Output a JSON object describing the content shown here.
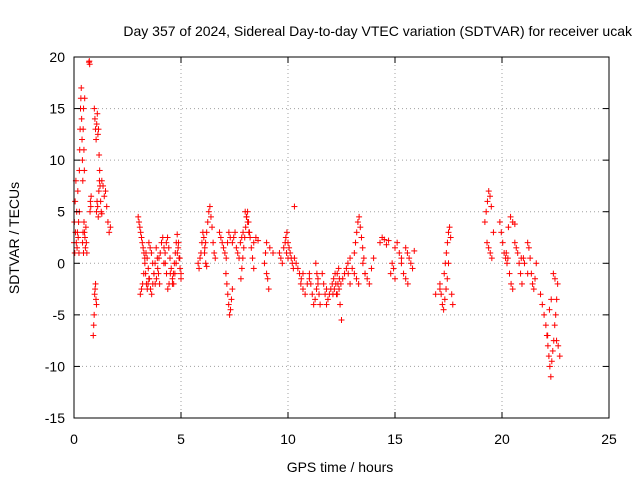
{
  "chart_data": {
    "type": "scatter",
    "title": "Day 357 of 2024, Sidereal Day-to-day VTEC variation (SDTVAR) for receiver ucak",
    "xlabel": "GPS time / hours",
    "ylabel": "SDTVAR / TECUs",
    "xlim": [
      0,
      25
    ],
    "ylim": [
      -15,
      20
    ],
    "xticks": [
      0,
      5,
      10,
      15,
      20,
      25
    ],
    "yticks": [
      -15,
      -10,
      -5,
      0,
      5,
      10,
      15,
      20
    ],
    "grid": true,
    "marker": "+",
    "color": "#ff0000",
    "series": [
      {
        "name": "SDTVAR",
        "segments": [
          {
            "t0": 0.0,
            "t1": 0.25,
            "y": [
              2,
              4,
              1,
              6,
              3,
              8,
              2,
              5,
              1.5,
              3,
              7,
              2.5,
              4,
              1,
              5
            ]
          },
          {
            "t0": 0.25,
            "t1": 0.5,
            "y": [
              9,
              11,
              13,
              15,
              16,
              17,
              14,
              12,
              10,
              8,
              13,
              15,
              11,
              9,
              16
            ]
          },
          {
            "t0": 0.4,
            "t1": 0.6,
            "y": [
              2,
              3,
              1,
              4,
              3,
              2.5,
              1.5,
              3.5,
              2,
              1
            ]
          },
          {
            "t0": 0.7,
            "t1": 0.8,
            "y": [
              19.5,
              19.6,
              19.3,
              5,
              6,
              5.5,
              6.5
            ]
          },
          {
            "t0": 0.9,
            "t1": 1.05,
            "y": [
              -7,
              -6,
              -5,
              -3,
              -2.5,
              -2,
              -3.5,
              -4
            ]
          },
          {
            "t0": 0.95,
            "t1": 1.2,
            "y": [
              15,
              14,
              13,
              12,
              13.5,
              14.5,
              12.5,
              13,
              10.5,
              9
            ]
          },
          {
            "t0": 1.05,
            "t1": 1.3,
            "y": [
              5,
              6,
              5.5,
              4.5,
              7,
              8,
              7.5,
              6,
              5,
              4.8
            ]
          },
          {
            "t0": 1.3,
            "t1": 1.7,
            "y": [
              8,
              7.5,
              6.5,
              7,
              5.5,
              4,
              3,
              3.5
            ]
          },
          {
            "t0": 3.0,
            "t1": 3.5,
            "y": [
              4.5,
              4,
              3.5,
              3,
              2.5,
              2,
              1.5,
              1,
              0.5,
              -1,
              -2,
              -2.5,
              -2,
              -1.5
            ]
          },
          {
            "t0": 3.1,
            "t1": 4.0,
            "y": [
              -3,
              -2.5,
              -2,
              -1,
              0,
              1,
              0.5,
              -0.5,
              -1.5,
              -2.5,
              -3,
              -2,
              -1,
              0,
              1.5,
              0.5,
              -1,
              -2
            ]
          },
          {
            "t0": 3.5,
            "t1": 4.5,
            "y": [
              2,
              1.5,
              1,
              0,
              -1,
              -2,
              -1.5,
              -0.5,
              0.5,
              1,
              2,
              2.5,
              1.5,
              0,
              -1,
              -2.5,
              -2,
              -1
            ]
          },
          {
            "t0": 4.2,
            "t1": 5.0,
            "y": [
              0,
              1,
              2,
              2.5,
              1.5,
              0.5,
              -0.5,
              -1.5,
              -2,
              -1,
              0,
              1,
              2,
              0.5,
              -1
            ]
          },
          {
            "t0": 4.6,
            "t1": 5.0,
            "y": [
              -2,
              -1,
              0,
              1,
              2,
              2.8,
              1.5,
              0.5,
              -0.5,
              -1.5
            ]
          },
          {
            "t0": 5.8,
            "t1": 6.2,
            "y": [
              0,
              -0.5,
              0.5,
              1,
              2,
              3,
              2.5,
              1.5,
              0,
              -0.3
            ]
          },
          {
            "t0": 6.1,
            "t1": 6.6,
            "y": [
              1,
              2,
              3,
              4,
              5,
              5.5,
              4.5,
              3.5,
              2,
              1,
              0.5
            ]
          },
          {
            "t0": 6.8,
            "t1": 7.3,
            "y": [
              3,
              2.5,
              2,
              1.5,
              1,
              0.5,
              2,
              3,
              2.5
            ]
          },
          {
            "t0": 7.1,
            "t1": 7.4,
            "y": [
              -1,
              -2,
              -3,
              -4,
              -5,
              -4.5,
              -3.5,
              -2.5
            ]
          },
          {
            "t0": 7.4,
            "t1": 7.9,
            "y": [
              2,
              2.5,
              3,
              1.5,
              1,
              0.5,
              2,
              2.5,
              3
            ]
          },
          {
            "t0": 7.8,
            "t1": 8.2,
            "y": [
              -1.5,
              -0.5,
              0.5,
              1.5,
              2.5,
              3.5,
              4.5,
              5,
              4,
              3
            ]
          },
          {
            "t0": 8.0,
            "t1": 8.4,
            "y": [
              5,
              4.5,
              4,
              3,
              2.5,
              1.5,
              0.5,
              -0.5
            ]
          },
          {
            "t0": 8.4,
            "t1": 8.6,
            "y": [
              2,
              2.5,
              2.2
            ]
          },
          {
            "t0": 8.9,
            "t1": 9.1,
            "y": [
              0,
              1,
              -1,
              -1.5,
              -2.5
            ]
          },
          {
            "t0": 9.0,
            "t1": 9.3,
            "y": [
              2,
              1.5,
              1
            ]
          },
          {
            "t0": 9.6,
            "t1": 10.0,
            "y": [
              1,
              0.5,
              0,
              1.5,
              2,
              1,
              0.5
            ]
          },
          {
            "t0": 9.9,
            "t1": 10.3,
            "y": [
              2.5,
              3,
              2,
              1.5,
              1,
              0.5,
              0,
              -0.5,
              5.5
            ]
          },
          {
            "t0": 10.3,
            "t1": 10.7,
            "y": [
              0.5,
              0,
              -0.5,
              -1,
              -1.5,
              -1
            ]
          },
          {
            "t0": 10.6,
            "t1": 11.0,
            "y": [
              -2,
              -2.5,
              -3,
              -2,
              -1.5
            ]
          },
          {
            "t0": 11.0,
            "t1": 11.4,
            "y": [
              -1,
              -2,
              -3,
              -4,
              -3.5,
              -2.5,
              -1.5
            ]
          },
          {
            "t0": 11.3,
            "t1": 11.5,
            "y": [
              0,
              -1,
              -2,
              -3,
              -4
            ]
          },
          {
            "t0": 11.6,
            "t1": 11.8,
            "y": [
              -1,
              -2,
              -3,
              -2.5
            ]
          },
          {
            "t0": 11.8,
            "t1": 12.4,
            "y": [
              -4,
              -3.5,
              -3,
              -2.5,
              -2,
              -1.5,
              -1,
              -3,
              -2,
              -1.5
            ]
          },
          {
            "t0": 12.1,
            "t1": 12.5,
            "y": [
              -3,
              -2.5,
              -2,
              -1,
              -0.5,
              -4,
              -5.5
            ]
          },
          {
            "t0": 12.3,
            "t1": 12.9,
            "y": [
              -3,
              -2.5,
              -2,
              -1.5,
              -1,
              -0.5,
              -1,
              -2
            ]
          },
          {
            "t0": 12.8,
            "t1": 13.3,
            "y": [
              0,
              0.5,
              -0.5,
              -1,
              -1.5,
              -2
            ]
          },
          {
            "t0": 13.1,
            "t1": 13.6,
            "y": [
              1,
              2,
              3,
              4,
              4.5,
              3.5,
              2.5,
              1.5,
              0.5,
              -1
            ]
          },
          {
            "t0": 13.5,
            "t1": 14.0,
            "y": [
              0,
              -1,
              -1.5,
              -2,
              -0.5,
              0.5
            ]
          },
          {
            "t0": 14.3,
            "t1": 14.7,
            "y": [
              2,
              2.5,
              2.3,
              1.8,
              2.2
            ]
          },
          {
            "t0": 14.8,
            "t1": 15.0,
            "y": [
              -1,
              0,
              -0.5,
              -1.5
            ]
          },
          {
            "t0": 15.0,
            "t1": 15.3,
            "y": [
              1.5,
              2,
              1,
              0.5
            ]
          },
          {
            "t0": 15.3,
            "t1": 15.6,
            "y": [
              0,
              -1,
              -1.5,
              -2
            ]
          },
          {
            "t0": 15.5,
            "t1": 15.9,
            "y": [
              1.5,
              1,
              0.5,
              0,
              -0.5,
              1.2
            ]
          },
          {
            "t0": 16.9,
            "t1": 17.1,
            "y": [
              -3,
              -2.5
            ]
          },
          {
            "t0": 17.1,
            "t1": 17.5,
            "y": [
              -2,
              -3,
              -4,
              -4.5,
              -3.5,
              -2.5,
              -1.5,
              0
            ]
          },
          {
            "t0": 17.3,
            "t1": 17.7,
            "y": [
              -1,
              0,
              1,
              2,
              3,
              3.5,
              2.5,
              -3,
              -4
            ]
          },
          {
            "t0": 19.2,
            "t1": 19.5,
            "y": [
              4,
              5,
              6,
              7,
              6.5,
              5.5
            ]
          },
          {
            "t0": 19.3,
            "t1": 19.6,
            "y": [
              2,
              1.5,
              1,
              0.5,
              3
            ]
          },
          {
            "t0": 19.9,
            "t1": 20.3,
            "y": [
              4,
              3,
              2,
              1,
              0.5,
              0,
              3.5
            ]
          },
          {
            "t0": 20.2,
            "t1": 20.5,
            "y": [
              1,
              0.5,
              -1,
              -2,
              -2.5
            ]
          },
          {
            "t0": 20.4,
            "t1": 20.6,
            "y": [
              4.5,
              4,
              3.8
            ]
          },
          {
            "t0": 20.6,
            "t1": 21.0,
            "y": [
              2,
              1.5,
              1,
              0,
              -1,
              -2,
              0.5
            ]
          },
          {
            "t0": 20.9,
            "t1": 21.2,
            "y": [
              0.5,
              0,
              -1
            ]
          },
          {
            "t0": 21.2,
            "t1": 21.6,
            "y": [
              2,
              1.5,
              0.5,
              -1,
              -2,
              -2.5,
              -1.5,
              0
            ]
          },
          {
            "t0": 21.8,
            "t1": 22.3,
            "y": [
              -3,
              -4,
              -5,
              -6,
              -7,
              -4.5,
              -3.5
            ]
          },
          {
            "t0": 22.1,
            "t1": 22.6,
            "y": [
              -7,
              -8,
              -9,
              -10,
              -11,
              -9.5,
              -8.5,
              -7.5,
              -6,
              -5,
              -3.5,
              -2
            ]
          },
          {
            "t0": 22.4,
            "t1": 22.7,
            "y": [
              -1,
              -1.5,
              -7.5,
              -8,
              -9
            ]
          }
        ]
      }
    ]
  }
}
